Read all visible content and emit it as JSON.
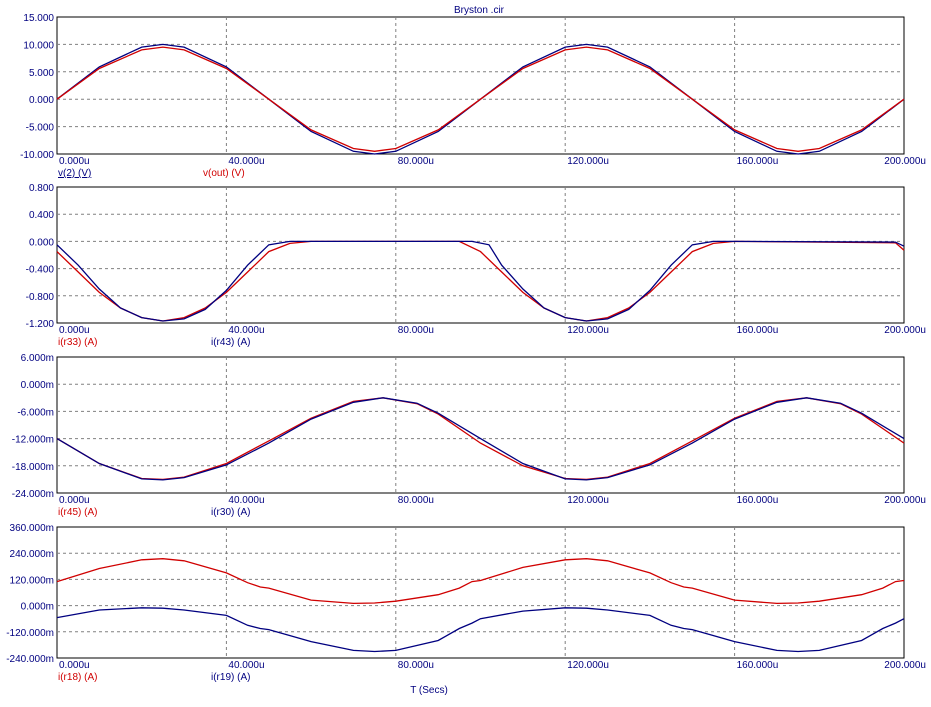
{
  "colors": {
    "red": "#d00000",
    "blue": "#000080",
    "grid": "#808080",
    "text": "#000080"
  },
  "chart_data": {
    "type": "line",
    "title": "Bryston .cir",
    "xlabel": "T (Secs)",
    "xlim": [
      0,
      200
    ],
    "x_ticks": [
      "0.000u",
      "40.000u",
      "80.000u",
      "120.000u",
      "160.000u",
      "200.000u"
    ],
    "grid": true,
    "panels": [
      {
        "ylim": [
          -10,
          15
        ],
        "y_ticks": [
          "15.000",
          "10.000",
          "5.000",
          "0.000",
          "-5.000",
          "-10.000"
        ],
        "series": [
          {
            "name": "v(2) (V)",
            "color": "blue",
            "legend_underlined": true,
            "x": [
              0,
              10,
              20,
              25,
              30,
              40,
              50,
              60,
              70,
              75,
              80,
              90,
              100,
              110,
              120,
              125,
              130,
              140,
              150,
              160,
              170,
              175,
              180,
              190,
              200
            ],
            "y": [
              0,
              5.9,
              9.5,
              10,
              9.5,
              5.9,
              0,
              -5.9,
              -9.5,
              -10,
              -9.5,
              -5.9,
              0,
              5.9,
              9.5,
              10,
              9.5,
              5.9,
              0,
              -5.9,
              -9.5,
              -10,
              -9.5,
              -5.9,
              0
            ]
          },
          {
            "name": "v(out) (V)",
            "color": "red",
            "x": [
              0,
              10,
              20,
              25,
              30,
              40,
              50,
              60,
              70,
              75,
              80,
              90,
              100,
              110,
              120,
              125,
              130,
              140,
              150,
              160,
              170,
              175,
              180,
              190,
              200
            ],
            "y": [
              0,
              5.6,
              9,
              9.5,
              9,
              5.6,
              0,
              -5.6,
              -9,
              -9.5,
              -9,
              -5.6,
              0,
              5.6,
              9,
              9.5,
              9,
              5.6,
              0,
              -5.6,
              -9,
              -9.5,
              -9,
              -5.6,
              0
            ]
          }
        ]
      },
      {
        "ylim": [
          -1.2,
          0.8
        ],
        "y_ticks": [
          "0.800",
          "0.400",
          "0.000",
          "-0.400",
          "-0.800",
          "-1.200"
        ],
        "series": [
          {
            "name": "i(r33) (A)",
            "color": "red",
            "x": [
              0,
              5,
              10,
              15,
              20,
              25,
              30,
              35,
              40,
              45,
              50,
              55,
              60,
              95,
              100,
              105,
              110,
              115,
              120,
              125,
              130,
              135,
              140,
              145,
              150,
              155,
              160,
              198,
              200
            ],
            "y": [
              -0.15,
              -0.45,
              -0.75,
              -0.98,
              -1.12,
              -1.17,
              -1.12,
              -0.98,
              -0.75,
              -0.45,
              -0.15,
              -0.03,
              0,
              0,
              -0.15,
              -0.45,
              -0.75,
              -0.98,
              -1.12,
              -1.17,
              -1.12,
              -0.98,
              -0.75,
              -0.45,
              -0.15,
              -0.03,
              0,
              -0.02,
              -0.13
            ]
          },
          {
            "name": "i(r43) (A)",
            "color": "blue",
            "x": [
              0,
              5,
              10,
              15,
              20,
              25,
              30,
              35,
              40,
              45,
              50,
              55,
              60,
              98,
              102,
              105,
              110,
              115,
              120,
              125,
              130,
              135,
              140,
              145,
              150,
              155,
              160,
              198,
              200
            ],
            "y": [
              -0.05,
              -0.35,
              -0.7,
              -0.98,
              -1.12,
              -1.17,
              -1.14,
              -1.0,
              -0.72,
              -0.35,
              -0.05,
              0,
              0,
              0,
              -0.05,
              -0.35,
              -0.7,
              -0.98,
              -1.12,
              -1.17,
              -1.14,
              -1.0,
              -0.72,
              -0.35,
              -0.05,
              0,
              0,
              -0.01,
              -0.07
            ]
          }
        ]
      },
      {
        "ylim": [
          -24,
          6
        ],
        "y_ticks": [
          "6.000m",
          "0.000m",
          "-6.000m",
          "-12.000m",
          "-18.000m",
          "-24.000m"
        ],
        "series": [
          {
            "name": "i(r45) (A)",
            "color": "red",
            "x": [
              0,
              10,
              20,
              25,
              30,
              40,
              50,
              60,
              70,
              77,
              85,
              90,
              100,
              110,
              120,
              125,
              130,
              140,
              150,
              160,
              170,
              177,
              185,
              190,
              200
            ],
            "y": [
              -12,
              -17.5,
              -20.8,
              -21,
              -20.5,
              -17.5,
              -12.5,
              -7.5,
              -3.8,
              -3,
              -4.3,
              -6.6,
              -13,
              -18,
              -20.8,
              -21,
              -20.5,
              -17.5,
              -12.5,
              -7.5,
              -3.8,
              -3,
              -4.3,
              -6.6,
              -13
            ]
          },
          {
            "name": "i(r30) (A)",
            "color": "blue",
            "x": [
              0,
              10,
              20,
              25,
              30,
              40,
              50,
              60,
              70,
              77,
              85,
              90,
              100,
              110,
              120,
              125,
              130,
              140,
              150,
              160,
              170,
              177,
              185,
              190,
              200
            ],
            "y": [
              -12,
              -17.5,
              -20.9,
              -21.1,
              -20.6,
              -17.8,
              -13,
              -7.7,
              -4,
              -3,
              -4.2,
              -6.4,
              -12,
              -17.5,
              -20.9,
              -21.1,
              -20.6,
              -17.8,
              -13,
              -7.7,
              -4,
              -3,
              -4.2,
              -6.4,
              -12
            ]
          }
        ]
      },
      {
        "ylim": [
          -240,
          360
        ],
        "y_ticks": [
          "360.000m",
          "240.000m",
          "120.000m",
          "0.000m",
          "-120.000m",
          "-240.000m"
        ],
        "series": [
          {
            "name": "i(r18) (A)",
            "color": "red",
            "x": [
              0,
              10,
              20,
              25,
              30,
              40,
              45,
              48,
              50,
              60,
              70,
              75,
              80,
              90,
              95,
              98,
              100,
              110,
              120,
              125,
              130,
              140,
              145,
              148,
              150,
              160,
              170,
              175,
              180,
              190,
              195,
              198,
              200
            ],
            "y": [
              110,
              170,
              210,
              215,
              205,
              150,
              105,
              85,
              80,
              25,
              10,
              12,
              20,
              50,
              80,
              110,
              115,
              175,
              210,
              215,
              205,
              150,
              105,
              85,
              80,
              25,
              10,
              12,
              20,
              50,
              80,
              110,
              115
            ]
          },
          {
            "name": "i(r19) (A)",
            "color": "blue",
            "x": [
              0,
              10,
              20,
              25,
              30,
              40,
              45,
              48,
              50,
              60,
              70,
              75,
              80,
              90,
              95,
              98,
              100,
              110,
              120,
              125,
              130,
              140,
              145,
              148,
              150,
              160,
              170,
              175,
              180,
              190,
              195,
              198,
              200
            ],
            "y": [
              -55,
              -20,
              -10,
              -12,
              -20,
              -45,
              -90,
              -105,
              -110,
              -165,
              -205,
              -210,
              -205,
              -160,
              -105,
              -80,
              -60,
              -25,
              -10,
              -12,
              -20,
              -45,
              -90,
              -105,
              -110,
              -165,
              -205,
              -210,
              -205,
              -160,
              -105,
              -80,
              -60
            ]
          }
        ]
      }
    ]
  }
}
